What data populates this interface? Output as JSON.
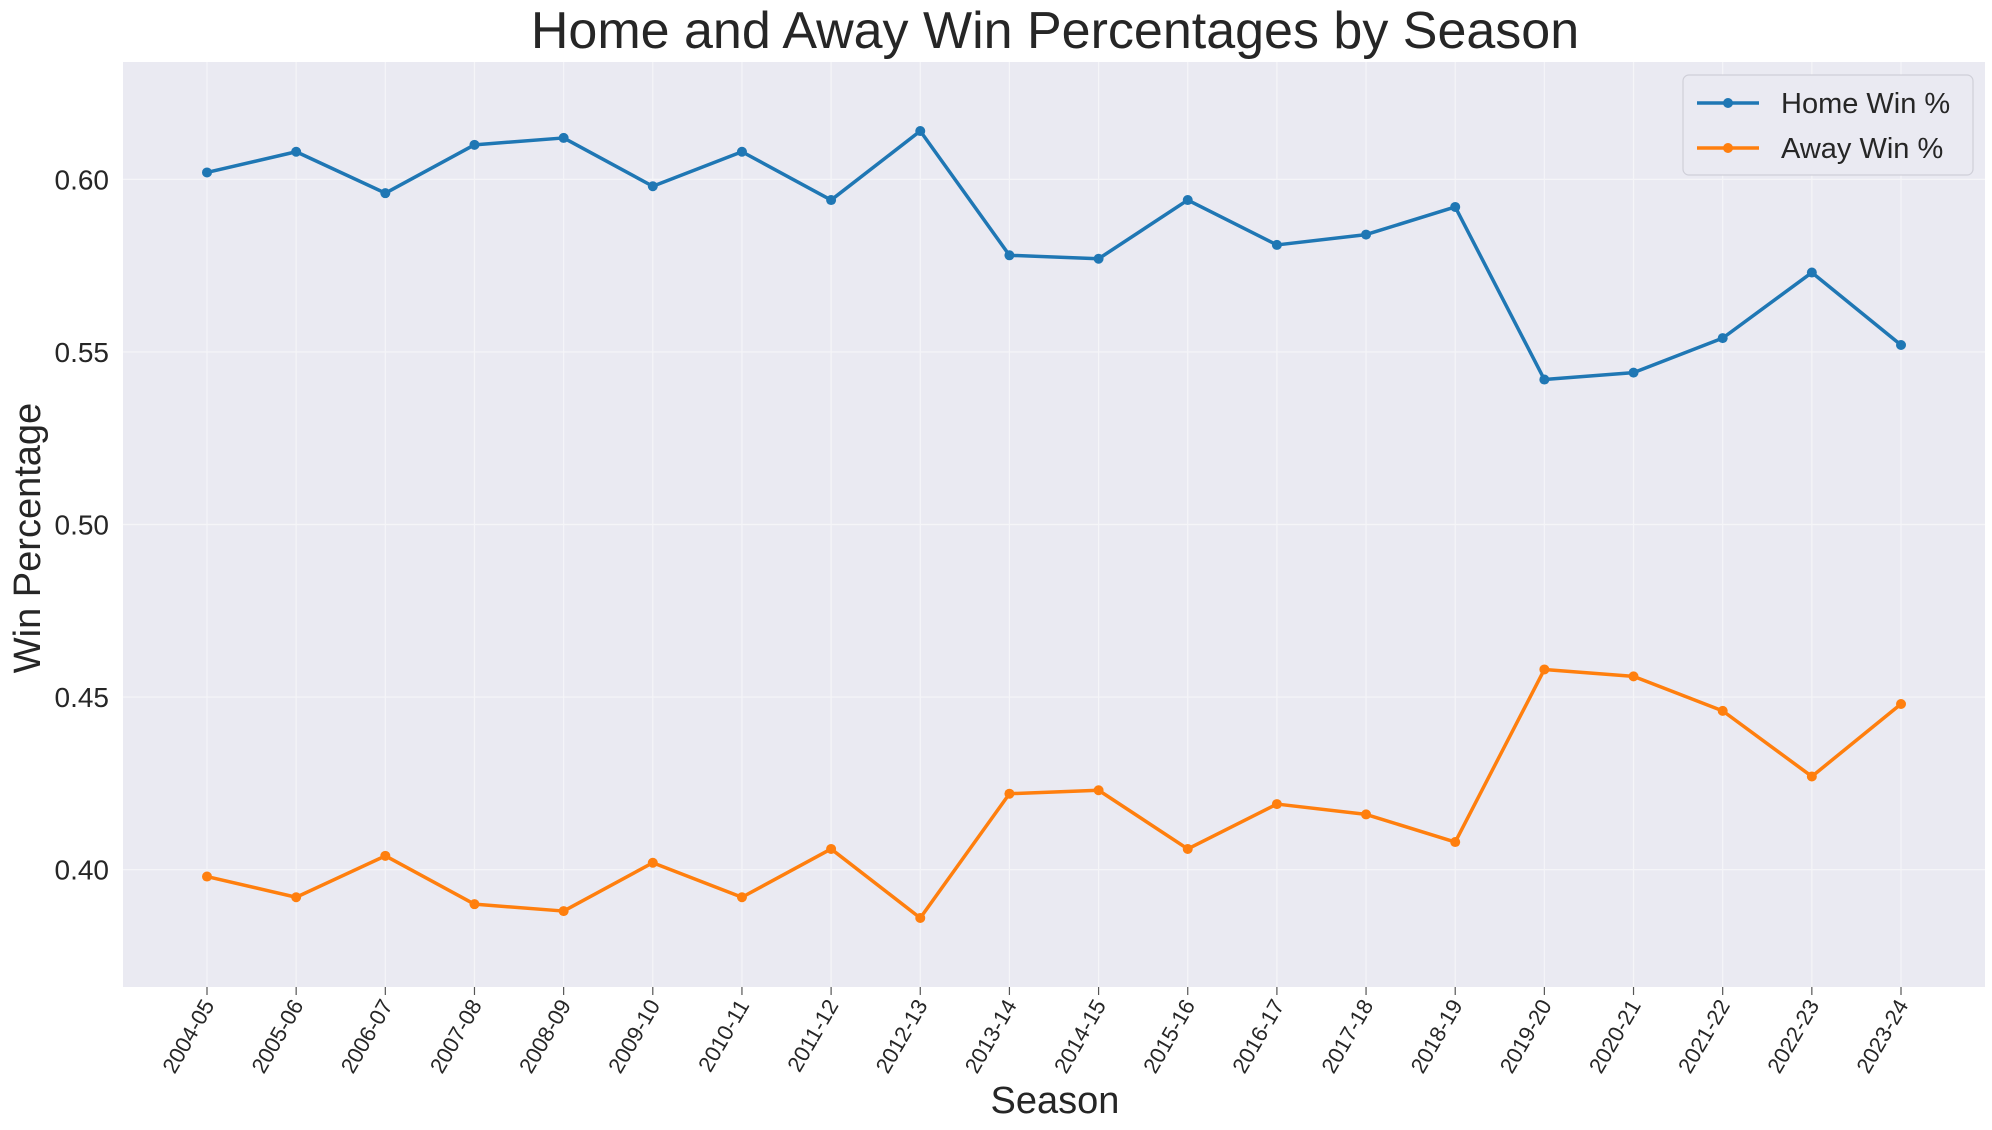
{
  "chart_data": {
    "type": "line",
    "title": "Home and Away Win Percentages by Season",
    "xlabel": "Season",
    "ylabel": "Win Percentage",
    "categories": [
      "2004-05",
      "2005-06",
      "2006-07",
      "2007-08",
      "2008-09",
      "2009-10",
      "2010-11",
      "2011-12",
      "2012-13",
      "2013-14",
      "2014-15",
      "2015-16",
      "2016-17",
      "2017-18",
      "2018-19",
      "2019-20",
      "2020-21",
      "2021-22",
      "2022-23",
      "2023-24"
    ],
    "ylim": [
      0.366,
      0.634
    ],
    "yticks": [
      0.4,
      0.45,
      0.5,
      0.55,
      0.6
    ],
    "ytick_labels": [
      "0.40",
      "0.45",
      "0.50",
      "0.55",
      "0.60"
    ],
    "grid": true,
    "legend_position": "top-right",
    "series": [
      {
        "name": "Home Win %",
        "color": "#1f77b4",
        "values": [
          0.602,
          0.608,
          0.596,
          0.61,
          0.612,
          0.598,
          0.608,
          0.594,
          0.614,
          0.578,
          0.577,
          0.594,
          0.581,
          0.584,
          0.592,
          0.542,
          0.544,
          0.554,
          0.573,
          0.552
        ]
      },
      {
        "name": "Away Win %",
        "color": "#ff7f0e",
        "values": [
          0.398,
          0.392,
          0.404,
          0.39,
          0.388,
          0.402,
          0.392,
          0.406,
          0.386,
          0.422,
          0.423,
          0.406,
          0.419,
          0.416,
          0.408,
          0.458,
          0.456,
          0.446,
          0.427,
          0.448
        ]
      }
    ]
  },
  "style": {
    "plot_background": "#eaeaf2",
    "grid_color": "#f5f5f8"
  }
}
